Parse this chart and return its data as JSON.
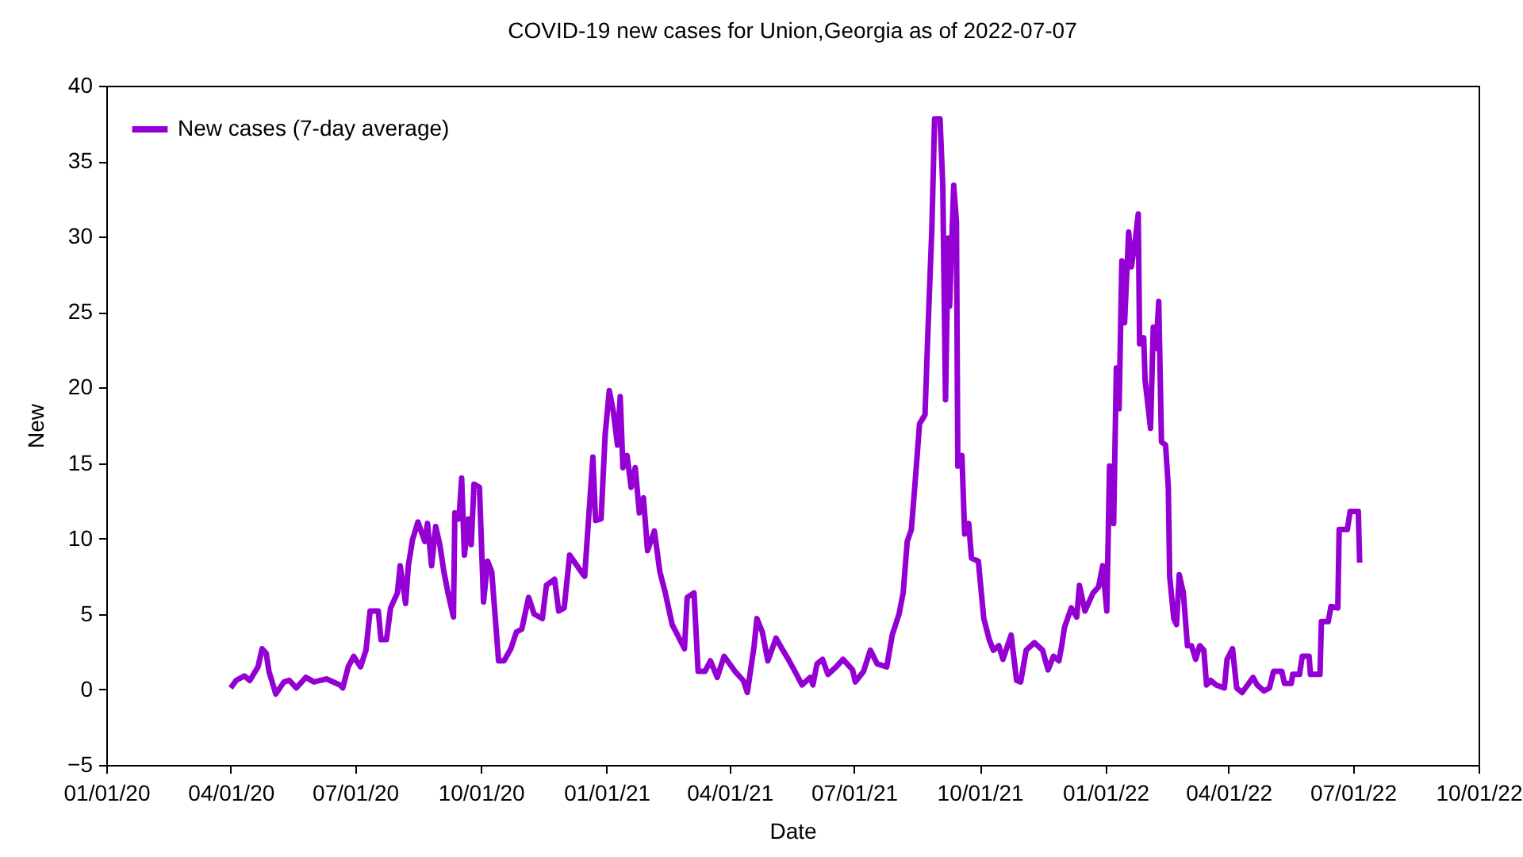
{
  "chart_data": {
    "type": "line",
    "title": "COVID-19 new cases for Union,Georgia as of 2022-07-07",
    "xlabel": "Date",
    "ylabel": "New",
    "x": [
      "2020-04-01",
      "2020-04-05",
      "2020-04-11",
      "2020-04-15",
      "2020-04-21",
      "2020-04-24",
      "2020-04-27",
      "2020-04-29",
      "2020-05-04",
      "2020-05-10",
      "2020-05-14",
      "2020-05-19",
      "2020-05-26",
      "2020-06-01",
      "2020-06-10",
      "2020-06-20",
      "2020-06-22",
      "2020-06-26",
      "2020-06-30",
      "2020-07-05",
      "2020-07-09",
      "2020-07-12",
      "2020-07-18",
      "2020-07-20",
      "2020-07-24",
      "2020-07-27",
      "2020-08-01",
      "2020-08-03",
      "2020-08-07",
      "2020-08-09",
      "2020-08-12",
      "2020-08-16",
      "2020-08-21",
      "2020-08-23",
      "2020-08-26",
      "2020-08-29",
      "2020-09-01",
      "2020-09-04",
      "2020-09-07",
      "2020-09-11",
      "2020-09-12",
      "2020-09-15",
      "2020-09-17",
      "2020-09-19",
      "2020-09-22",
      "2020-09-24",
      "2020-09-26",
      "2020-09-30",
      "2020-10-03",
      "2020-10-06",
      "2020-10-09",
      "2020-10-14",
      "2020-10-18",
      "2020-10-23",
      "2020-10-27",
      "2020-10-31",
      "2020-11-05",
      "2020-11-09",
      "2020-11-15",
      "2020-11-18",
      "2020-11-24",
      "2020-11-27",
      "2020-12-01",
      "2020-12-05",
      "2020-12-15",
      "2020-12-16",
      "2020-12-19",
      "2020-12-22",
      "2020-12-24",
      "2020-12-28",
      "2020-12-31",
      "2021-01-03",
      "2021-01-06",
      "2021-01-09",
      "2021-01-11",
      "2021-01-13",
      "2021-01-16",
      "2021-01-19",
      "2021-01-22",
      "2021-01-25",
      "2021-01-28",
      "2021-01-31",
      "2021-02-05",
      "2021-02-09",
      "2021-02-13",
      "2021-02-18",
      "2021-02-22",
      "2021-02-27",
      "2021-03-01",
      "2021-03-06",
      "2021-03-09",
      "2021-03-14",
      "2021-03-18",
      "2021-03-23",
      "2021-03-28",
      "2021-04-05",
      "2021-04-11",
      "2021-04-14",
      "2021-04-19",
      "2021-04-21",
      "2021-04-25",
      "2021-04-29",
      "2021-05-05",
      "2021-05-10",
      "2021-05-14",
      "2021-05-20",
      "2021-05-24",
      "2021-05-30",
      "2021-06-01",
      "2021-06-04",
      "2021-06-08",
      "2021-06-12",
      "2021-06-18",
      "2021-06-23",
      "2021-06-30",
      "2021-07-02",
      "2021-07-08",
      "2021-07-13",
      "2021-07-18",
      "2021-07-25",
      "2021-07-29",
      "2021-08-03",
      "2021-08-06",
      "2021-08-09",
      "2021-08-12",
      "2021-08-15",
      "2021-08-18",
      "2021-08-22",
      "2021-08-24",
      "2021-08-27",
      "2021-08-29",
      "2021-09-02",
      "2021-09-04",
      "2021-09-06",
      "2021-09-08",
      "2021-09-09",
      "2021-09-12",
      "2021-09-14",
      "2021-09-15",
      "2021-09-18",
      "2021-09-20",
      "2021-09-23",
      "2021-09-25",
      "2021-09-30",
      "2021-10-04",
      "2021-10-08",
      "2021-10-11",
      "2021-10-15",
      "2021-10-18",
      "2021-10-24",
      "2021-10-28",
      "2021-10-31",
      "2021-11-04",
      "2021-11-10",
      "2021-11-16",
      "2021-11-20",
      "2021-11-24",
      "2021-11-28",
      "2021-11-30",
      "2021-12-02",
      "2021-12-07",
      "2021-12-11",
      "2021-12-13",
      "2021-12-17",
      "2021-12-23",
      "2021-12-27",
      "2021-12-30",
      "2022-01-02",
      "2022-01-04",
      "2022-01-07",
      "2022-01-09",
      "2022-01-11",
      "2022-01-13",
      "2022-01-15",
      "2022-01-18",
      "2022-01-20",
      "2022-01-23",
      "2022-01-25",
      "2022-01-26",
      "2022-01-29",
      "2022-01-30",
      "2022-02-03",
      "2022-02-05",
      "2022-02-07",
      "2022-02-09",
      "2022-02-11",
      "2022-02-14",
      "2022-02-16",
      "2022-02-17",
      "2022-02-20",
      "2022-02-22",
      "2022-02-24",
      "2022-02-27",
      "2022-03-02",
      "2022-03-05",
      "2022-03-08",
      "2022-03-11",
      "2022-03-14",
      "2022-03-16",
      "2022-03-19",
      "2022-03-23",
      "2022-03-29",
      "2022-03-31",
      "2022-04-04",
      "2022-04-07",
      "2022-04-11",
      "2022-04-15",
      "2022-04-19",
      "2022-04-22",
      "2022-04-27",
      "2022-05-01",
      "2022-05-04",
      "2022-05-10",
      "2022-05-12",
      "2022-05-17",
      "2022-05-18",
      "2022-05-23",
      "2022-05-25",
      "2022-05-30",
      "2022-05-31",
      "2022-06-07",
      "2022-06-08",
      "2022-06-13",
      "2022-06-15",
      "2022-06-20",
      "2022-06-21",
      "2022-06-27",
      "2022-06-29",
      "2022-07-05",
      "2022-07-06"
    ],
    "series": [
      {
        "name": "New cases (7-day average)",
        "color": "#9400d3",
        "values": [
          0.1,
          0.6,
          0.9,
          0.6,
          1.5,
          2.7,
          2.4,
          1.2,
          -0.3,
          0.5,
          0.6,
          0.1,
          0.8,
          0.5,
          0.7,
          0.3,
          0.1,
          1.5,
          2.2,
          1.5,
          2.6,
          5.2,
          5.2,
          3.3,
          3.3,
          5.4,
          6.4,
          8.2,
          5.7,
          8.2,
          9.9,
          11.1,
          9.8,
          11.0,
          8.2,
          10.8,
          9.6,
          7.8,
          6.4,
          4.8,
          11.7,
          11.3,
          14.0,
          8.9,
          11.3,
          9.6,
          13.6,
          13.4,
          5.8,
          8.5,
          7.8,
          1.9,
          1.9,
          2.7,
          3.8,
          4.0,
          6.1,
          5.0,
          4.7,
          6.9,
          7.3,
          5.2,
          5.4,
          8.9,
          7.6,
          7.5,
          11.5,
          15.4,
          11.2,
          11.3,
          16.9,
          19.8,
          18.4,
          16.2,
          19.4,
          14.7,
          15.5,
          13.4,
          14.7,
          11.7,
          12.7,
          9.2,
          10.5,
          7.8,
          6.4,
          4.3,
          3.6,
          2.7,
          6.1,
          6.4,
          1.2,
          1.2,
          1.9,
          0.8,
          2.2,
          1.2,
          0.6,
          -0.2,
          2.9,
          4.7,
          3.8,
          1.9,
          3.4,
          2.6,
          2.0,
          1.0,
          0.3,
          0.8,
          0.3,
          1.7,
          2.0,
          1.0,
          1.5,
          2.0,
          1.3,
          0.5,
          1.2,
          2.6,
          1.7,
          1.5,
          3.6,
          5.0,
          6.4,
          9.8,
          10.6,
          14.0,
          17.6,
          18.2,
          23.4,
          30.5,
          37.8,
          37.8,
          33.4,
          19.2,
          29.9,
          25.4,
          33.4,
          31.0,
          14.8,
          15.5,
          10.3,
          11.0,
          8.7,
          8.5,
          4.7,
          3.3,
          2.6,
          2.9,
          2.0,
          3.6,
          0.6,
          0.5,
          2.6,
          3.1,
          2.6,
          1.3,
          2.2,
          1.9,
          2.9,
          4.1,
          5.4,
          4.8,
          6.9,
          5.2,
          6.4,
          6.8,
          8.2,
          5.2,
          14.8,
          11.0,
          21.3,
          18.6,
          28.4,
          24.3,
          30.3,
          28.0,
          29.9,
          31.5,
          22.9,
          23.3,
          20.5,
          17.3,
          24.0,
          22.6,
          25.7,
          16.4,
          16.2,
          13.4,
          7.5,
          4.7,
          4.3,
          7.6,
          6.4,
          2.9,
          2.9,
          2.0,
          2.9,
          2.6,
          0.3,
          0.6,
          0.3,
          0.1,
          2.0,
          2.7,
          0.1,
          -0.2,
          0.3,
          0.8,
          0.3,
          -0.1,
          0.1,
          1.2,
          1.2,
          0.4,
          0.4,
          1.0,
          1.0,
          2.2,
          2.2,
          1.0,
          1.0,
          4.5,
          4.5,
          5.5,
          5.4,
          10.6,
          10.6,
          11.8,
          11.8,
          8.4
        ]
      }
    ],
    "xlim": [
      "2020-01-01",
      "2022-10-01"
    ],
    "xticks": [
      {
        "value": "2020-01-01",
        "label": "01/01/20"
      },
      {
        "value": "2020-04-01",
        "label": "04/01/20"
      },
      {
        "value": "2020-07-01",
        "label": "07/01/20"
      },
      {
        "value": "2020-10-01",
        "label": "10/01/20"
      },
      {
        "value": "2021-01-01",
        "label": "01/01/21"
      },
      {
        "value": "2021-04-01",
        "label": "04/01/21"
      },
      {
        "value": "2021-07-01",
        "label": "07/01/21"
      },
      {
        "value": "2021-10-01",
        "label": "10/01/21"
      },
      {
        "value": "2022-01-01",
        "label": "01/01/22"
      },
      {
        "value": "2022-04-01",
        "label": "04/01/22"
      },
      {
        "value": "2022-07-01",
        "label": "07/01/22"
      },
      {
        "value": "2022-10-01",
        "label": "10/01/22"
      }
    ],
    "ylim": [
      -5,
      40
    ],
    "yticks": [
      -5,
      0,
      5,
      10,
      15,
      20,
      25,
      30,
      35,
      40
    ],
    "legend": "top left",
    "line_style": "solid"
  }
}
